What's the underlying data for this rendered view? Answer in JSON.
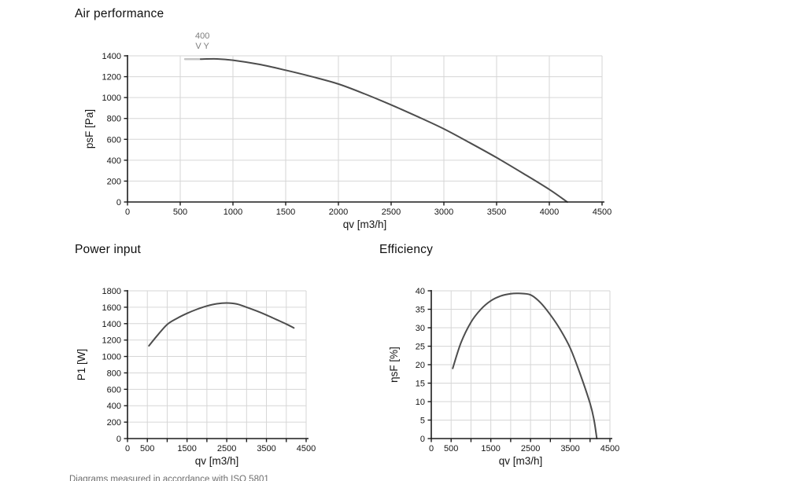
{
  "page": {
    "background": "#ffffff"
  },
  "style": {
    "grid_color": "#d6d6d6",
    "axis_color": "#1c1c1c",
    "tick_text_color": "#151515",
    "curve_color": "#4d4d4d",
    "annotation_color": "#7d7d7d",
    "pre_segment_color": "#c3c3c3"
  },
  "footnote": {
    "text": "Diagrams measured in accordance with ISO 5801"
  },
  "chart_data": [
    {
      "id": "air",
      "type": "line",
      "title": "Air performance",
      "xlabel": "qv [m3/h]",
      "ylabel": "psF [Pa]",
      "xlim": [
        0,
        4500
      ],
      "ylim": [
        0,
        1400
      ],
      "grid": true,
      "xticks": [
        0,
        500,
        1000,
        1500,
        2000,
        2500,
        3000,
        3500,
        4000,
        4500
      ],
      "xtick_labels": [
        "0",
        "500",
        "1000",
        "1500",
        "2000",
        "2500",
        "3000",
        "3500",
        "4000",
        "4500"
      ],
      "yticks": [
        0,
        200,
        400,
        600,
        800,
        1000,
        1200,
        1400
      ],
      "ytick_labels": [
        "0",
        "200",
        "400",
        "600",
        "800",
        "1000",
        "1200",
        "1400"
      ],
      "annotation": {
        "x": 710,
        "lines": [
          "400",
          "V Y"
        ]
      },
      "pre_segment": {
        "points": [
          [
            545,
            1368
          ],
          [
            690,
            1368
          ]
        ]
      },
      "series": [
        {
          "name": "psF curve 400 V Y",
          "points": [
            [
              694,
              1368
            ],
            [
              850,
              1370
            ],
            [
              1000,
              1358
            ],
            [
              1250,
              1318
            ],
            [
              1500,
              1262
            ],
            [
              1750,
              1200
            ],
            [
              2000,
              1130
            ],
            [
              2250,
              1035
            ],
            [
              2500,
              930
            ],
            [
              2750,
              818
            ],
            [
              3000,
              700
            ],
            [
              3250,
              565
            ],
            [
              3500,
              425
            ],
            [
              3750,
              275
            ],
            [
              4000,
              120
            ],
            [
              4170,
              0
            ]
          ]
        }
      ]
    },
    {
      "id": "power",
      "type": "line",
      "title": "Power input",
      "xlabel": "qv [m3/h]",
      "ylabel": "P1 [W]",
      "xlim": [
        0,
        4500
      ],
      "ylim": [
        0,
        1800
      ],
      "grid": true,
      "xticks": [
        0,
        500,
        1000,
        1500,
        2000,
        2500,
        3000,
        3500,
        4000,
        4500
      ],
      "xtick_labels": [
        "0",
        "500",
        "",
        "1500",
        "",
        "2500",
        "",
        "3500",
        "",
        "4500"
      ],
      "yticks": [
        0,
        200,
        400,
        600,
        800,
        1000,
        1200,
        1400,
        1600,
        1800
      ],
      "ytick_labels": [
        "0",
        "200",
        "400",
        "600",
        "800",
        "1000",
        "1200",
        "1400",
        "1600",
        "1800"
      ],
      "series": [
        {
          "name": "P1 curve",
          "points": [
            [
              540,
              1130
            ],
            [
              750,
              1255
            ],
            [
              1000,
              1390
            ],
            [
              1250,
              1465
            ],
            [
              1500,
              1525
            ],
            [
              1750,
              1575
            ],
            [
              2000,
              1615
            ],
            [
              2250,
              1642
            ],
            [
              2500,
              1652
            ],
            [
              2750,
              1640
            ],
            [
              3000,
              1600
            ],
            [
              3250,
              1555
            ],
            [
              3500,
              1505
            ],
            [
              3750,
              1450
            ],
            [
              4000,
              1395
            ],
            [
              4190,
              1348
            ]
          ]
        }
      ]
    },
    {
      "id": "eff",
      "type": "line",
      "title": "Efficiency",
      "xlabel": "qv [m3/h]",
      "ylabel": "ηsF [%]",
      "xlim": [
        0,
        4500
      ],
      "ylim": [
        0,
        40
      ],
      "grid": true,
      "xticks": [
        0,
        500,
        1000,
        1500,
        2000,
        2500,
        3000,
        3500,
        4000,
        4500
      ],
      "xtick_labels": [
        "0",
        "500",
        "",
        "1500",
        "",
        "2500",
        "",
        "3500",
        "",
        "4500"
      ],
      "yticks": [
        0,
        5,
        10,
        15,
        20,
        25,
        30,
        35,
        40
      ],
      "ytick_labels": [
        "0",
        "5",
        "10",
        "15",
        "20",
        "25",
        "30",
        "35",
        "40"
      ],
      "series": [
        {
          "name": "etasF curve",
          "points": [
            [
              540,
              19
            ],
            [
              750,
              26
            ],
            [
              1000,
              31.5
            ],
            [
              1250,
              35
            ],
            [
              1500,
              37.3
            ],
            [
              1750,
              38.6
            ],
            [
              2000,
              39.2
            ],
            [
              2200,
              39.3
            ],
            [
              2500,
              38.9
            ],
            [
              2750,
              36.8
            ],
            [
              3000,
              33.5
            ],
            [
              3250,
              29.5
            ],
            [
              3500,
              24.5
            ],
            [
              3750,
              17.5
            ],
            [
              4000,
              9.5
            ],
            [
              4100,
              5
            ],
            [
              4170,
              0
            ]
          ]
        }
      ]
    }
  ]
}
